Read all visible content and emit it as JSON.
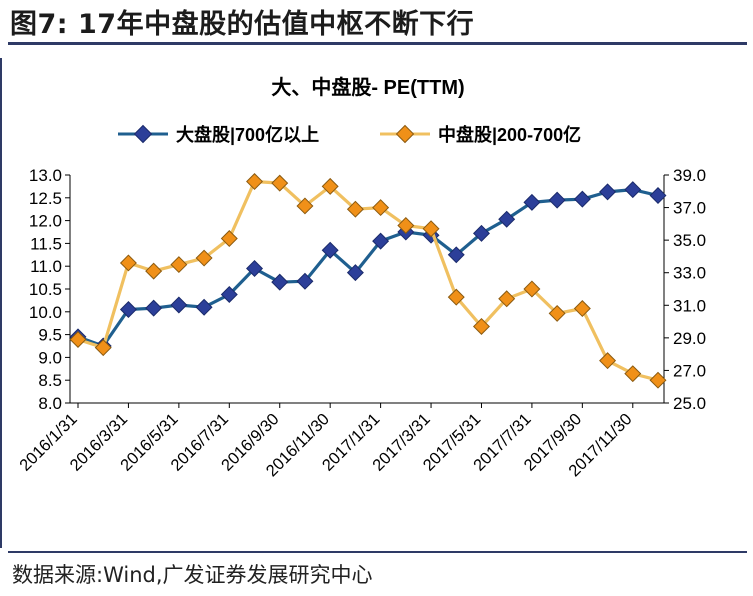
{
  "figure": {
    "label": "图7:",
    "title": "17年中盘股的估值中枢不断下行",
    "source": "数据来源:Wind,广发证券发展研究中心"
  },
  "colors": {
    "large_cap": "#1f5f8f",
    "large_cap_marker": "#2c3f99",
    "mid_cap": "#f0c060",
    "mid_cap_marker": "#f09018",
    "frame": "#2e3a66"
  },
  "chart_data": {
    "type": "line",
    "title": "大、中盘股- PE(TTM)",
    "legend_position": "top",
    "x_tick_labels": [
      "2016/1/31",
      "2016/3/31",
      "2016/5/31",
      "2016/7/31",
      "2016/9/30",
      "2016/11/30",
      "2017/1/31",
      "2017/3/31",
      "2017/5/31",
      "2017/7/31",
      "2017/9/30",
      "2017/11/30"
    ],
    "x": [
      "2016/1/31",
      "2016/2/29",
      "2016/3/31",
      "2016/4/30",
      "2016/5/31",
      "2016/6/30",
      "2016/7/31",
      "2016/8/31",
      "2016/9/30",
      "2016/10/31",
      "2016/11/30",
      "2016/12/31",
      "2017/1/31",
      "2017/2/28",
      "2017/3/31",
      "2017/4/30",
      "2017/5/31",
      "2017/6/30",
      "2017/7/31",
      "2017/8/31",
      "2017/9/30",
      "2017/10/31",
      "2017/11/30",
      "2017/12/8"
    ],
    "y_left": {
      "min": 8.0,
      "max": 13.0,
      "step": 0.5,
      "decimals": 1
    },
    "y_right": {
      "min": 25.0,
      "max": 39.0,
      "step": 2.0,
      "decimals": 1
    },
    "grid": false,
    "series": [
      {
        "name": "大盘股|700亿以上",
        "axis": "left",
        "values": [
          9.45,
          9.25,
          10.05,
          10.08,
          10.15,
          10.1,
          10.38,
          10.95,
          10.65,
          10.67,
          11.35,
          10.86,
          11.55,
          11.75,
          11.68,
          11.25,
          11.72,
          12.03,
          12.4,
          12.45,
          12.47,
          12.63,
          12.68,
          12.55
        ]
      },
      {
        "name": "中盘股|200-700亿",
        "axis": "right",
        "values": [
          28.9,
          28.4,
          33.6,
          33.1,
          33.5,
          33.9,
          35.1,
          38.6,
          38.5,
          37.1,
          38.3,
          36.9,
          37.0,
          35.9,
          35.7,
          31.5,
          29.7,
          31.4,
          32.0,
          30.5,
          30.8,
          27.6,
          26.8,
          26.4
        ]
      }
    ]
  }
}
